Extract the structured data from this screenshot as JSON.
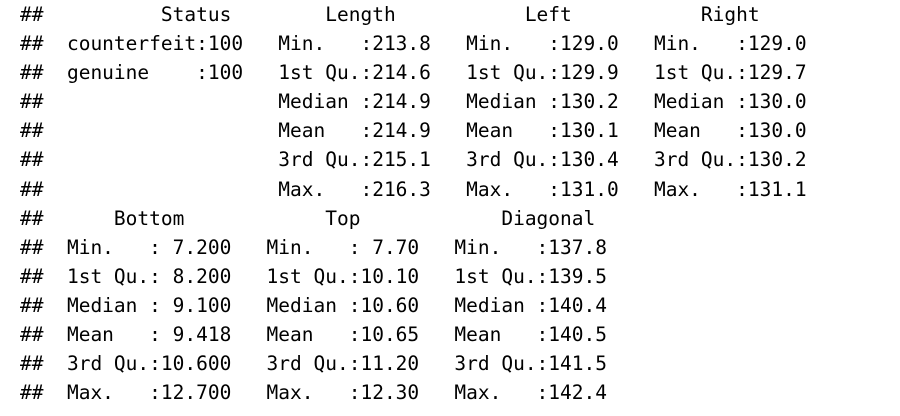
{
  "console_output": {
    "lines": [
      "##          Status        Length           Left           Right      ",
      "##  counterfeit:100   Min.   :213.8   Min.   :129.0   Min.   :129.0  ",
      "##  genuine    :100   1st Qu.:214.6   1st Qu.:129.9   1st Qu.:129.7  ",
      "##                    Median :214.9   Median :130.2   Median :130.0  ",
      "##                    Mean   :214.9   Mean   :130.1   Mean   :130.0  ",
      "##                    3rd Qu.:215.1   3rd Qu.:130.4   3rd Qu.:130.2  ",
      "##                    Max.   :216.3   Max.   :131.0   Max.   :131.1  ",
      "##      Bottom            Top            Diagonal    ",
      "##  Min.   : 7.200   Min.   : 7.70   Min.   :137.8  ",
      "##  1st Qu.: 8.200   1st Qu.:10.10   1st Qu.:139.5  ",
      "##  Median : 9.100   Median :10.60   Median :140.4  ",
      "##  Mean   : 9.418   Mean   :10.65   Mean   :140.5  ",
      "##  3rd Qu.:10.600   3rd Qu.:11.20   3rd Qu.:141.5  ",
      "##  Max.   :12.700   Max.   :12.30   Max.   :142.4  "
    ]
  }
}
